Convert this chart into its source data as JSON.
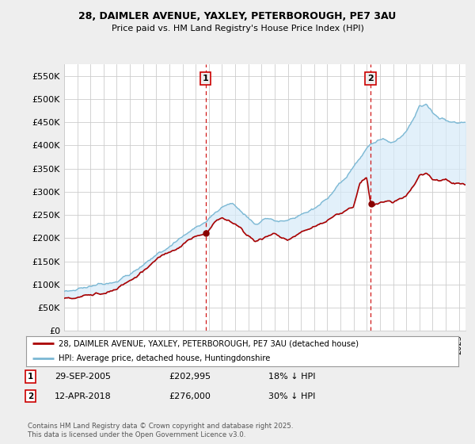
{
  "title1": "28, DAIMLER AVENUE, YAXLEY, PETERBOROUGH, PE7 3AU",
  "title2": "Price paid vs. HM Land Registry's House Price Index (HPI)",
  "yticks": [
    0,
    50000,
    100000,
    150000,
    200000,
    250000,
    300000,
    350000,
    400000,
    450000,
    500000,
    550000
  ],
  "ytick_labels": [
    "£0",
    "£50K",
    "£100K",
    "£150K",
    "£200K",
    "£250K",
    "£300K",
    "£350K",
    "£400K",
    "£450K",
    "£500K",
    "£550K"
  ],
  "xlim_start": 1995.0,
  "xlim_end": 2025.5,
  "ylim_min": 0,
  "ylim_max": 575000,
  "hpi_color": "#7bb8d4",
  "hpi_fill_color": "#d6eaf8",
  "price_color": "#aa0000",
  "dashed_color": "#cc0000",
  "marker1_x": 2005.75,
  "marker1_y": 202995,
  "marker1_label": "1",
  "marker2_x": 2018.28,
  "marker2_y": 276000,
  "marker2_label": "2",
  "legend_line1": "28, DAIMLER AVENUE, YAXLEY, PETERBOROUGH, PE7 3AU (detached house)",
  "legend_line2": "HPI: Average price, detached house, Huntingdonshire",
  "info1_label": "1",
  "info1_date": "29-SEP-2005",
  "info1_price": "£202,995",
  "info1_hpi": "18% ↓ HPI",
  "info2_label": "2",
  "info2_date": "12-APR-2018",
  "info2_price": "£276,000",
  "info2_hpi": "30% ↓ HPI",
  "footnote": "Contains HM Land Registry data © Crown copyright and database right 2025.\nThis data is licensed under the Open Government Licence v3.0.",
  "bg_color": "#eeeeee",
  "plot_bg": "#ffffff"
}
